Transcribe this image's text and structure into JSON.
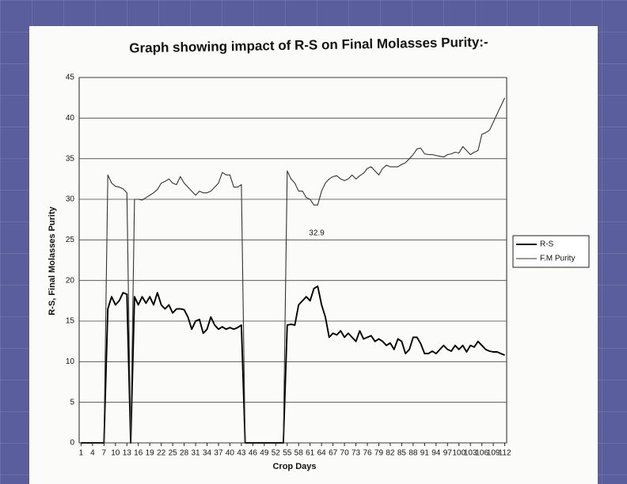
{
  "chart_data": {
    "type": "line",
    "title": "Graph showing impact of R-S on Final Molasses Purity:-",
    "xlabel": "Crop Days",
    "ylabel": "R-S, Final Molasses Purity",
    "annotation": "32.9",
    "x": [
      1,
      2,
      3,
      4,
      5,
      6,
      7,
      8,
      9,
      10,
      11,
      12,
      13,
      14,
      15,
      16,
      17,
      18,
      19,
      20,
      21,
      22,
      23,
      24,
      25,
      26,
      27,
      28,
      29,
      30,
      31,
      32,
      33,
      34,
      35,
      36,
      37,
      38,
      39,
      40,
      41,
      42,
      43,
      44,
      45,
      46,
      47,
      48,
      49,
      50,
      51,
      52,
      53,
      54,
      55,
      56,
      57,
      58,
      59,
      60,
      61,
      62,
      63,
      64,
      65,
      66,
      67,
      68,
      69,
      70,
      71,
      72,
      73,
      74,
      75,
      76,
      77,
      78,
      79,
      80,
      81,
      82,
      83,
      84,
      85,
      86,
      87,
      88,
      89,
      90,
      91,
      92,
      93,
      94,
      95,
      96,
      97,
      98,
      99,
      100,
      101,
      102,
      103,
      104,
      105,
      106,
      107,
      108,
      109,
      110,
      111,
      112
    ],
    "xlim": [
      1,
      112
    ],
    "xticks": [
      1,
      4,
      7,
      10,
      13,
      16,
      19,
      22,
      25,
      28,
      31,
      34,
      37,
      40,
      43,
      46,
      49,
      52,
      55,
      58,
      61,
      64,
      67,
      70,
      73,
      76,
      79,
      82,
      85,
      88,
      91,
      94,
      97,
      100,
      103,
      106,
      109,
      112
    ],
    "ylim": [
      0,
      45
    ],
    "yticks": [
      0,
      5,
      10,
      15,
      20,
      25,
      30,
      35,
      40,
      45
    ],
    "grid": true,
    "legend": "right",
    "series": [
      {
        "name": "R-S",
        "color": "#000000",
        "values": [
          0,
          0,
          0,
          0,
          0,
          0,
          0,
          16.5,
          18,
          17,
          17.5,
          18.5,
          18.3,
          0,
          18,
          17,
          18,
          17.2,
          18,
          17,
          18.5,
          17,
          16.5,
          17,
          16,
          16.5,
          16.5,
          16.4,
          15.5,
          14,
          15,
          15.2,
          13.5,
          14,
          15.5,
          14.5,
          14,
          14.3,
          14,
          14.2,
          14,
          14.2,
          14.5,
          0,
          0,
          0,
          0,
          0,
          0,
          0,
          0,
          0,
          0,
          0,
          14.5,
          14.6,
          14.5,
          17,
          17.5,
          18,
          17.5,
          19,
          19.3,
          17,
          15.5,
          13,
          13.5,
          13.3,
          13.8,
          13,
          13.5,
          13,
          12.5,
          13.8,
          12.8,
          13,
          13.2,
          12.5,
          12.8,
          12.5,
          12,
          12.3,
          11.5,
          12.8,
          12.5,
          11,
          11.5,
          13,
          13,
          12.2,
          11,
          11,
          11.3,
          11,
          11.5,
          12,
          11.5,
          11.3,
          12,
          11.5,
          12,
          11.2,
          12,
          11.8,
          12.5,
          12,
          11.5,
          11.3,
          11.2,
          11.2,
          11,
          10.8
        ]
      },
      {
        "name": "F.M Purity",
        "color": "#333333",
        "values": [
          0,
          0,
          0,
          0,
          0,
          0,
          0,
          33,
          32,
          31.6,
          31.5,
          31.3,
          30.8,
          0,
          30,
          30,
          29.9,
          30.2,
          30.5,
          30.8,
          31.2,
          32,
          32.2,
          32.5,
          32,
          31.8,
          32.8,
          32,
          31.5,
          31,
          30.5,
          31,
          30.8,
          30.8,
          31,
          31.5,
          32,
          33.3,
          33,
          33,
          31.5,
          31.5,
          31.8,
          0,
          0,
          0,
          0,
          0,
          0,
          0,
          0,
          0,
          0,
          0,
          33.5,
          32.5,
          32,
          31,
          31,
          30.2,
          30,
          29.3,
          29.3,
          31,
          32,
          32.5,
          32.8,
          32.9,
          32.5,
          32.3,
          32.5,
          33,
          32.5,
          32.9,
          33.2,
          33.8,
          34,
          33.5,
          33,
          33.8,
          34.2,
          34,
          34,
          34,
          34.3,
          34.5,
          35,
          35.5,
          36.2,
          36.3,
          35.6,
          35.5,
          35.5,
          35.4,
          35.3,
          35.2,
          35.5,
          35.6,
          35.8,
          35.7,
          36.5,
          36,
          35.5,
          35.8,
          36,
          38,
          38.2,
          38.5,
          39.5,
          40.5,
          41.5,
          42.5
        ]
      }
    ]
  }
}
